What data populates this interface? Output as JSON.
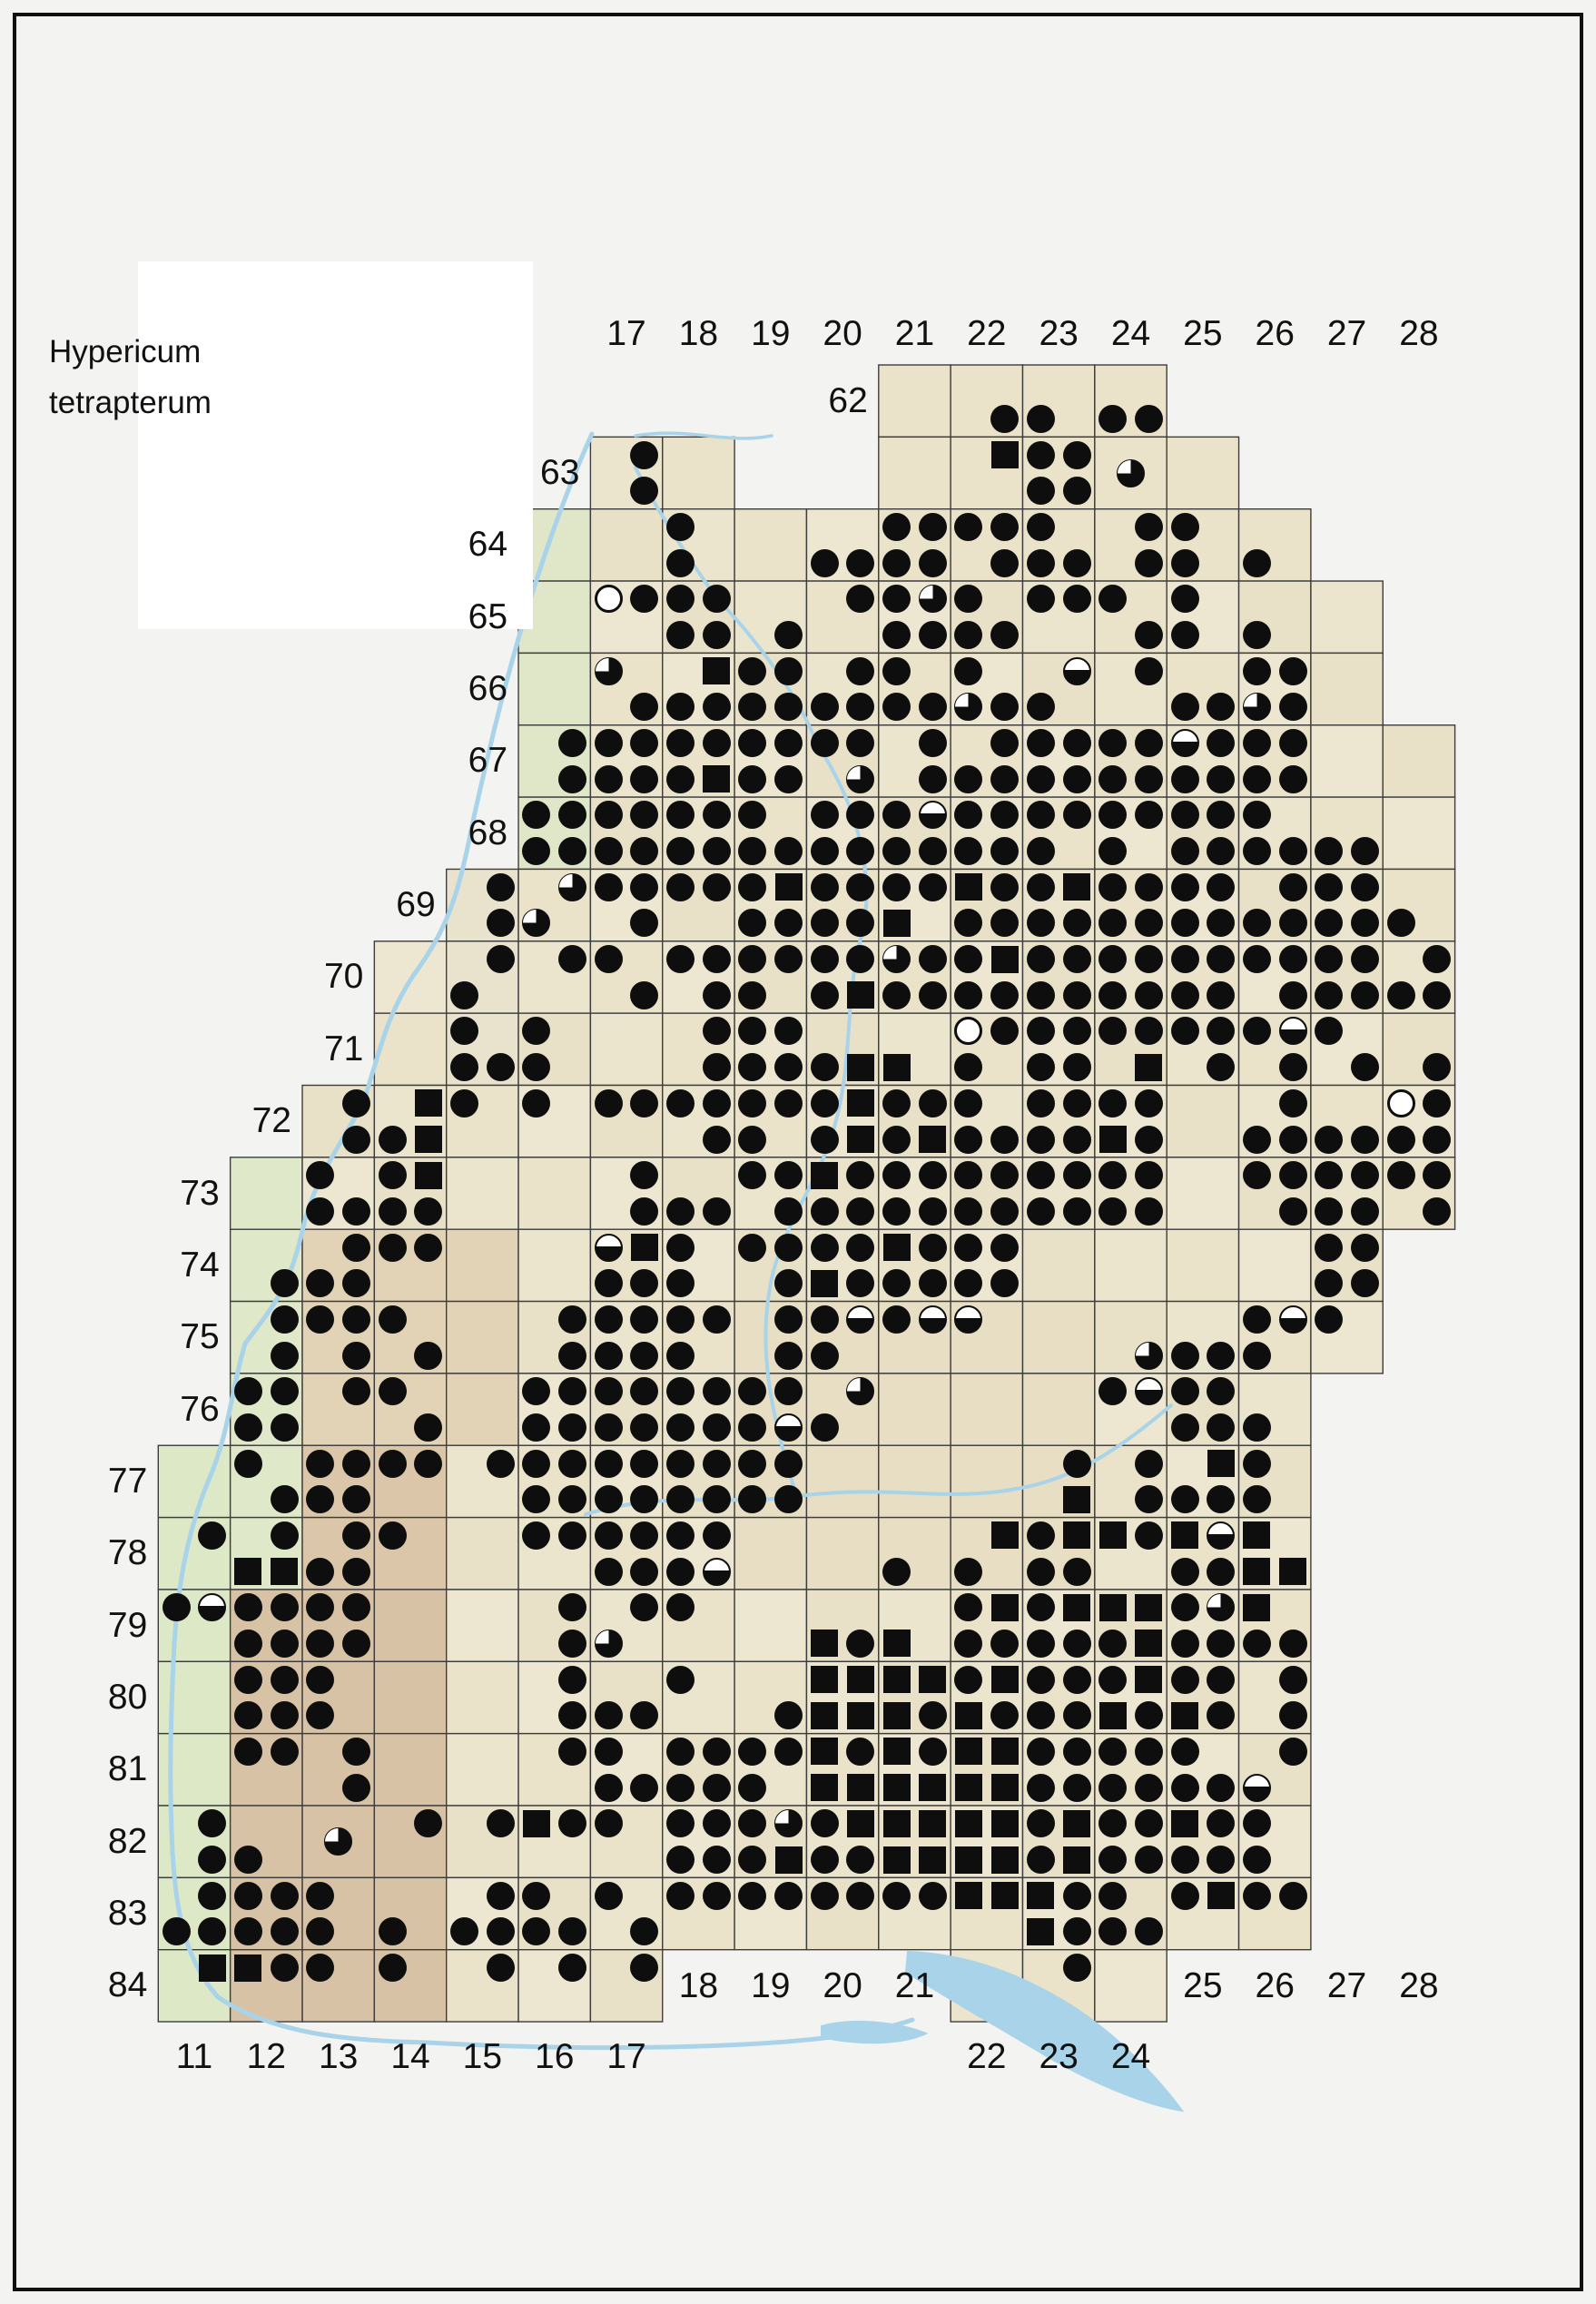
{
  "title": {
    "line1": "Hypericum",
    "line2": "tetrapterum"
  },
  "axis": {
    "top_labels": [
      {
        "col": 17,
        "text": "17"
      },
      {
        "col": 18,
        "text": "18"
      },
      {
        "col": 19,
        "text": "19"
      },
      {
        "col": 20,
        "text": "20"
      },
      {
        "col": 21,
        "text": "21"
      },
      {
        "col": 22,
        "text": "22"
      },
      {
        "col": 23,
        "text": "23"
      },
      {
        "col": 24,
        "text": "24"
      },
      {
        "col": 25,
        "text": "25"
      },
      {
        "col": 26,
        "text": "26"
      },
      {
        "col": 27,
        "text": "27"
      },
      {
        "col": 28,
        "text": "28"
      }
    ],
    "left_labels": [
      {
        "row": 62,
        "text": "62"
      },
      {
        "row": 63,
        "text": "63"
      },
      {
        "row": 64,
        "text": "64"
      },
      {
        "row": 65,
        "text": "65"
      },
      {
        "row": 66,
        "text": "66"
      },
      {
        "row": 67,
        "text": "67"
      },
      {
        "row": 68,
        "text": "68"
      },
      {
        "row": 69,
        "text": "69"
      },
      {
        "row": 70,
        "text": "70"
      },
      {
        "row": 71,
        "text": "71"
      },
      {
        "row": 72,
        "text": "72"
      },
      {
        "row": 73,
        "text": "73"
      },
      {
        "row": 74,
        "text": "74"
      },
      {
        "row": 75,
        "text": "75"
      },
      {
        "row": 76,
        "text": "76"
      },
      {
        "row": 77,
        "text": "77"
      },
      {
        "row": 78,
        "text": "78"
      },
      {
        "row": 79,
        "text": "79"
      },
      {
        "row": 80,
        "text": "80"
      },
      {
        "row": 81,
        "text": "81"
      },
      {
        "row": 82,
        "text": "82"
      },
      {
        "row": 83,
        "text": "83"
      },
      {
        "row": 84,
        "text": "84"
      }
    ],
    "bottom_labels_upper": [
      {
        "col": 18,
        "text": "18"
      },
      {
        "col": 19,
        "text": "19"
      },
      {
        "col": 20,
        "text": "20"
      },
      {
        "col": 21,
        "text": "21"
      },
      {
        "col": 25,
        "text": "25"
      },
      {
        "col": 26,
        "text": "26"
      },
      {
        "col": 27,
        "text": "27"
      },
      {
        "col": 28,
        "text": "28"
      }
    ],
    "bottom_labels_lower": [
      {
        "col": 11,
        "text": "11"
      },
      {
        "col": 12,
        "text": "12"
      },
      {
        "col": 13,
        "text": "13"
      },
      {
        "col": 14,
        "text": "14"
      },
      {
        "col": 15,
        "text": "15"
      },
      {
        "col": 16,
        "text": "16"
      },
      {
        "col": 17,
        "text": "17"
      },
      {
        "col": 22,
        "text": "22"
      },
      {
        "col": 23,
        "text": "23"
      },
      {
        "col": 24,
        "text": "24"
      }
    ]
  },
  "symbol_legend": {
    "f": "filled-circle-record",
    "s": "filled-square-record",
    "h": "circle-white-top-half",
    "q": "circle-white-top-left-quarter",
    "o": "open-circle"
  },
  "colors": {
    "symbol": "#0e0e0e",
    "grid_line": "#3d3d3d",
    "water": "#a9d3e9",
    "terrain_beige": "#ece4cd",
    "terrain_green": "#dde8c6",
    "terrain_brown": "#d8c2a5",
    "background": "#f3f3f1",
    "title_box": "#ffffff"
  },
  "grid_rows": [
    {
      "row": 62,
      "cols": [
        [
          21,
          24
        ]
      ]
    },
    {
      "row": 63,
      "cols": [
        [
          17,
          18
        ],
        [
          21,
          25
        ]
      ]
    },
    {
      "row": 64,
      "cols": [
        [
          16,
          26
        ]
      ]
    },
    {
      "row": 65,
      "cols": [
        [
          16,
          27
        ]
      ]
    },
    {
      "row": 66,
      "cols": [
        [
          16,
          27
        ]
      ]
    },
    {
      "row": 67,
      "cols": [
        [
          16,
          28
        ]
      ]
    },
    {
      "row": 68,
      "cols": [
        [
          16,
          28
        ]
      ]
    },
    {
      "row": 69,
      "cols": [
        [
          15,
          28
        ]
      ]
    },
    {
      "row": 70,
      "cols": [
        [
          14,
          28
        ]
      ]
    },
    {
      "row": 71,
      "cols": [
        [
          14,
          28
        ]
      ]
    },
    {
      "row": 72,
      "cols": [
        [
          13,
          28
        ]
      ]
    },
    {
      "row": 73,
      "cols": [
        [
          12,
          28
        ]
      ]
    },
    {
      "row": 74,
      "cols": [
        [
          12,
          27
        ]
      ]
    },
    {
      "row": 75,
      "cols": [
        [
          12,
          27
        ]
      ]
    },
    {
      "row": 76,
      "cols": [
        [
          12,
          26
        ]
      ]
    },
    {
      "row": 77,
      "cols": [
        [
          11,
          26
        ]
      ]
    },
    {
      "row": 78,
      "cols": [
        [
          11,
          26
        ]
      ]
    },
    {
      "row": 79,
      "cols": [
        [
          11,
          26
        ]
      ]
    },
    {
      "row": 80,
      "cols": [
        [
          11,
          26
        ]
      ]
    },
    {
      "row": 81,
      "cols": [
        [
          11,
          26
        ]
      ]
    },
    {
      "row": 82,
      "cols": [
        [
          11,
          26
        ]
      ]
    },
    {
      "row": 83,
      "cols": [
        [
          11,
          26
        ]
      ]
    },
    {
      "row": 84,
      "cols": [
        [
          11,
          17
        ],
        [
          22,
          24
        ]
      ]
    }
  ],
  "symbols": [
    "22,62,SE,f",
    "23,62,SW,f",
    "24,62,SW,f",
    "24,62,SE,f",
    "17,63,NE,f",
    "17,63,SE,f",
    "22,63,NE,s",
    "23,63,NW,f",
    "23,63,NE,f",
    "23,63,SW,f",
    "23,63,SE,f",
    "24,63,C,q",
    "18,64,NW,f",
    "18,64,SW,f",
    "20,64,SW,f",
    "20,64,SE,f",
    "21,64,NW,f",
    "21,64,NE,f",
    "21,64,SW,f",
    "21,64,SE,f",
    "22,64,NW,f",
    "22,64,NE,f",
    "22,64,SE,f",
    "23,64,NW,f",
    "23,64,SW,f",
    "23,64,SE,f",
    "24,64,NE,f",
    "24,64,SE,f",
    "25,64,NW,f",
    "25,64,SW,f",
    "26,64,SW,f",
    "17,65,NW,o",
    "17,65,NE,f",
    "18,65,NW,f",
    "18,65,NE,f",
    "18,65,SW,f",
    "18,65,SE,f",
    "19,65,SE,f",
    "20,65,NE,f",
    "21,65,NW,f",
    "21,65,NE,q",
    "21,65,SW,f",
    "21,65,SE,f",
    "22,65,NW,f",
    "22,65,SW,f",
    "22,65,SE,f",
    "23,65,NW,f",
    "23,65,NE,f",
    "24,65,NW,f",
    "24,65,SE,f",
    "25,65,NW,f",
    "25,65,SW,f",
    "26,65,SW,f",
    "17,66,NW,q",
    "17,66,SE,f",
    "18,66,NE,s",
    "18,66,SW,f",
    "18,66,SE,f",
    "19,66,NW,f",
    "19,66,NE,f",
    "19,66,SW,f",
    "19,66,SE,f",
    "20,66,NE,f",
    "20,66,SW,f",
    "20,66,SE,f",
    "21,66,NW,f",
    "21,66,SW,f",
    "21,66,SE,f",
    "22,66,NW,f",
    "22,66,SW,q",
    "22,66,SE,f",
    "23,66,NE,h",
    "23,66,SW,f",
    "24,66,NE,f",
    "25,66,SW,f",
    "25,66,SE,f",
    "26,66,NW,f",
    "26,66,NE,f",
    "26,66,SW,q",
    "26,66,SE,f",
    "16,67,NE,f",
    "16,67,SE,f",
    "17,67,NW,f",
    "17,67,NE,f",
    "17,67,SW,f",
    "17,67,SE,f",
    "18,67,NW,f",
    "18,67,NE,f",
    "18,67,SW,f",
    "18,67,SE,s",
    "19,67,NW,f",
    "19,67,NE,f",
    "19,67,SW,f",
    "19,67,SE,f",
    "20,67,NW,f",
    "20,67,NE,f",
    "20,67,SE,q",
    "21,67,NE,f",
    "21,67,SE,f",
    "22,67,NE,f",
    "22,67,SW,f",
    "22,67,SE,f",
    "23,67,NW,f",
    "23,67,NE,f",
    "23,67,SW,f",
    "23,67,SE,f",
    "24,67,NW,f",
    "24,67,NE,f",
    "24,67,SW,f",
    "24,67,SE,f",
    "25,67,NW,h",
    "25,67,NE,f",
    "25,67,SW,f",
    "25,67,SE,f",
    "26,67,NW,f",
    "26,67,NE,f",
    "26,67,SW,f",
    "26,67,SE,f",
    "16,68,NW,f",
    "16,68,NE,f",
    "16,68,SW,f",
    "16,68,SE,f",
    "17,68,NW,f",
    "17,68,NE,f",
    "17,68,SW,f",
    "17,68,SE,f",
    "18,68,NW,f",
    "18,68,NE,f",
    "18,68,SW,f",
    "18,68,SE,f",
    "19,68,NW,f",
    "19,68,SW,f",
    "19,68,SE,f",
    "20,68,NW,f",
    "20,68,NE,f",
    "20,68,SW,f",
    "20,68,SE,f",
    "21,68,NW,f",
    "21,68,NE,h",
    "21,68,SW,f",
    "21,68,SE,f",
    "22,68,NW,f",
    "22,68,NE,f",
    "22,68,SW,f",
    "22,68,SE,f",
    "23,68,NW,f",
    "23,68,NE,f",
    "23,68,SW,f",
    "24,68,NW,f",
    "24,68,NE,f",
    "24,68,SW,f",
    "25,68,NW,f",
    "25,68,NE,f",
    "25,68,SW,f",
    "25,68,SE,f",
    "26,68,NW,f",
    "26,68,SW,f",
    "26,68,SE,f",
    "27,68,SW,f",
    "27,68,SE,f",
    "15,69,NE,f",
    "15,69,SE,f",
    "16,69,NE,q",
    "16,69,SW,q",
    "17,69,NW,f",
    "17,69,NE,f",
    "17,69,SE,f",
    "18,69,NW,f",
    "18,69,NE,f",
    "19,69,NW,f",
    "19,69,NE,s",
    "19,69,SW,f",
    "19,69,SE,f",
    "20,69,NW,f",
    "20,69,NE,f",
    "20,69,SW,f",
    "20,69,SE,f",
    "21,69,NW,f",
    "21,69,NE,f",
    "21,69,SW,s",
    "22,69,NW,s",
    "22,69,NE,f",
    "22,69,SW,f",
    "22,69,SE,f",
    "23,69,NW,f",
    "23,69,NE,s",
    "23,69,SW,f",
    "23,69,SE,f",
    "24,69,NW,f",
    "24,69,NE,f",
    "24,69,SW,f",
    "24,69,SE,f",
    "25,69,NW,f",
    "25,69,NE,f",
    "25,69,SW,f",
    "25,69,SE,f",
    "26,69,NE,f",
    "26,69,SW,f",
    "26,69,SE,f",
    "27,69,NW,f",
    "27,69,NE,f",
    "27,69,SW,f",
    "27,69,SE,f",
    "28,69,SW,f",
    "15,70,NE,f",
    "15,70,SW,f",
    "16,70,NE,f",
    "17,70,NW,f",
    "17,70,SE,f",
    "18,70,NW,f",
    "18,70,NE,f",
    "18,70,SE,f",
    "19,70,NW,f",
    "19,70,NE,f",
    "19,70,SW,f",
    "20,70,NW,f",
    "20,70,NE,f",
    "20,70,SW,f",
    "20,70,SE,s",
    "21,70,NW,q",
    "21,70,NE,f",
    "21,70,SW,f",
    "21,70,SE,f",
    "22,70,NW,f",
    "22,70,NE,s",
    "22,70,SW,f",
    "22,70,SE,f",
    "23,70,NW,f",
    "23,70,NE,f",
    "23,70,SW,f",
    "23,70,SE,f",
    "24,70,NW,f",
    "24,70,NE,f",
    "24,70,SW,f",
    "24,70,SE,f",
    "25,70,NW,f",
    "25,70,NE,f",
    "25,70,SW,f",
    "25,70,SE,f",
    "26,70,NW,f",
    "26,70,NE,f",
    "26,70,SE,f",
    "27,70,NW,f",
    "27,70,NE,f",
    "27,70,SW,f",
    "27,70,SE,f",
    "28,70,NE,f",
    "28,70,SW,f",
    "28,70,SE,f",
    "15,71,NW,f",
    "15,71,SW,f",
    "15,71,SE,f",
    "16,71,NW,f",
    "16,71,SW,f",
    "18,71,NE,f",
    "18,71,SE,f",
    "19,71,NW,f",
    "19,71,NE,f",
    "19,71,SW,f",
    "19,71,SE,f",
    "20,71,SW,f",
    "20,71,SE,s",
    "21,71,SW,s",
    "22,71,NW,o",
    "22,71,NE,f",
    "22,71,SW,f",
    "23,71,NW,f",
    "23,71,NE,f",
    "23,71,SW,f",
    "23,71,SE,f",
    "24,71,NW,f",
    "24,71,NE,f",
    "24,71,SE,s",
    "25,71,NW,f",
    "25,71,NE,f",
    "25,71,SE,f",
    "26,71,NW,f",
    "26,71,NE,h",
    "26,71,SE,f",
    "27,71,NW,f",
    "27,71,SE,f",
    "28,71,SE,f",
    "13,72,NE,f",
    "13,72,SE,f",
    "14,72,NE,s",
    "14,72,SW,f",
    "14,72,SE,s",
    "15,72,NW,f",
    "16,72,NW,f",
    "17,72,NW,f",
    "17,72,NE,f",
    "18,72,NW,f",
    "18,72,NE,f",
    "18,72,SE,f",
    "19,72,NW,f",
    "19,72,NE,f",
    "19,72,SW,f",
    "20,72,NW,f",
    "20,72,NE,s",
    "20,72,SW,f",
    "20,72,SE,s",
    "21,72,NW,f",
    "21,72,NE,f",
    "21,72,SW,f",
    "21,72,SE,s",
    "22,72,NW,f",
    "22,72,SW,f",
    "22,72,SE,f",
    "23,72,NW,f",
    "23,72,NE,f",
    "23,72,SW,f",
    "23,72,SE,f",
    "24,72,NW,f",
    "24,72,NE,f",
    "24,72,SW,s",
    "24,72,SE,f",
    "26,72,NE,f",
    "26,72,SW,f",
    "26,72,SE,f",
    "27,72,SW,f",
    "27,72,SE,f",
    "28,72,NW,o",
    "28,72,NE,f",
    "28,72,SW,f",
    "28,72,SE,f",
    "13,73,NW,f",
    "13,73,SW,f",
    "13,73,SE,f",
    "14,73,NW,f",
    "14,73,NE,s",
    "14,73,SW,f",
    "14,73,SE,f",
    "17,73,NE,f",
    "17,73,SE,f",
    "18,73,SW,f",
    "18,73,SE,f",
    "19,73,NW,f",
    "19,73,NE,f",
    "19,73,SE,f",
    "20,73,NW,s",
    "20,73,NE,f",
    "20,73,SW,f",
    "20,73,SE,f",
    "21,73,NW,f",
    "21,73,NE,f",
    "21,73,SW,f",
    "21,73,SE,f",
    "22,73,NW,f",
    "22,73,NE,f",
    "22,73,SW,f",
    "22,73,SE,f",
    "23,73,NW,f",
    "23,73,NE,f",
    "23,73,SW,f",
    "23,73,SE,f",
    "24,73,NW,f",
    "24,73,NE,f",
    "24,73,SW,f",
    "24,73,SE,f",
    "26,73,NW,f",
    "26,73,NE,f",
    "26,73,SE,f",
    "27,73,NW,f",
    "27,73,NE,f",
    "27,73,SW,f",
    "27,73,SE,f",
    "28,73,NW,f",
    "28,73,NE,f",
    "28,73,SE,f",
    "12,74,SE,f",
    "13,74,NE,f",
    "13,74,SW,f",
    "13,74,SE,f",
    "14,74,NW,f",
    "14,74,NE,f",
    "17,74,NW,h",
    "17,74,NE,s",
    "17,74,SW,f",
    "17,74,SE,f",
    "18,74,NW,f",
    "18,74,SW,f",
    "19,74,NW,f",
    "19,74,NE,f",
    "19,74,SE,f",
    "20,74,NW,f",
    "20,74,NE,f",
    "20,74,SW,s",
    "20,74,SE,f",
    "21,74,NW,s",
    "21,74,NE,f",
    "21,74,SW,f",
    "21,74,SE,f",
    "22,74,NW,f",
    "22,74,NE,f",
    "22,74,SW,f",
    "22,74,SE,f",
    "27,74,NW,f",
    "27,74,NE,f",
    "27,74,SW,f",
    "27,74,SE,f",
    "12,75,NE,f",
    "12,75,SE,f",
    "13,75,NW,f",
    "13,75,NE,f",
    "13,75,SE,f",
    "14,75,NW,f",
    "14,75,SE,f",
    "16,75,NE,f",
    "16,75,SE,f",
    "17,75,NW,f",
    "17,75,NE,f",
    "17,75,SW,f",
    "17,75,SE,f",
    "18,75,NW,f",
    "18,75,NE,f",
    "18,75,SW,f",
    "19,75,NE,f",
    "19,75,SE,f",
    "20,75,NW,f",
    "20,75,NE,h",
    "20,75,SW,f",
    "21,75,NW,f",
    "21,75,NE,h",
    "22,75,NW,h",
    "24,75,SE,q",
    "25,75,SW,f",
    "25,75,SE,f",
    "26,75,NW,f",
    "26,75,NE,h",
    "26,75,SW,f",
    "27,75,NW,f",
    "12,76,NW,f",
    "12,76,NE,f",
    "12,76,SW,f",
    "12,76,SE,f",
    "13,76,NE,f",
    "14,76,NW,f",
    "14,76,SE,f",
    "16,76,NW,f",
    "16,76,NE,f",
    "16,76,SW,f",
    "16,76,SE,f",
    "17,76,NW,f",
    "17,76,NE,f",
    "17,76,SW,f",
    "17,76,SE,f",
    "18,76,NW,f",
    "18,76,NE,f",
    "18,76,SW,f",
    "18,76,SE,f",
    "19,76,NW,f",
    "19,76,NE,f",
    "19,76,SW,f",
    "19,76,SE,h",
    "20,76,NE,q",
    "20,76,SW,f",
    "24,76,NW,f",
    "24,76,NE,h",
    "25,76,NW,f",
    "25,76,NE,f",
    "25,76,SW,f",
    "25,76,SE,f",
    "26,76,SW,f",
    "12,77,NW,f",
    "12,77,SE,f",
    "13,77,NW,f",
    "13,77,NE,f",
    "13,77,SW,f",
    "13,77,SE,f",
    "14,77,NW,f",
    "14,77,NE,f",
    "15,77,NE,f",
    "16,77,NW,f",
    "16,77,NE,f",
    "16,77,SW,f",
    "16,77,SE,f",
    "17,77,NW,f",
    "17,77,NE,f",
    "17,77,SW,f",
    "17,77,SE,f",
    "18,77,NW,f",
    "18,77,NE,f",
    "18,77,SW,f",
    "18,77,SE,f",
    "19,77,NW,f",
    "19,77,NE,f",
    "19,77,SW,f",
    "19,77,SE,f",
    "23,77,NE,f",
    "23,77,SE,s",
    "24,77,NE,f",
    "24,77,SE,f",
    "25,77,NE,s",
    "25,77,SW,f",
    "25,77,SE,f",
    "26,77,NW,f",
    "26,77,SW,f",
    "11,78,NE,f",
    "12,78,NE,f",
    "12,78,SW,s",
    "12,78,SE,s",
    "13,78,NE,f",
    "13,78,SW,f",
    "13,78,SE,f",
    "14,78,NW,f",
    "16,78,NW,f",
    "16,78,NE,f",
    "17,78,NW,f",
    "17,78,NE,f",
    "17,78,SW,f",
    "17,78,SE,f",
    "18,78,NW,f",
    "18,78,NE,f",
    "18,78,SW,f",
    "18,78,SE,h",
    "21,78,SW,f",
    "22,78,NE,s",
    "22,78,SW,f",
    "23,78,NW,f",
    "23,78,NE,s",
    "23,78,SW,f",
    "23,78,SE,f",
    "24,78,NW,s",
    "24,78,NE,f",
    "25,78,NW,s",
    "25,78,NE,h",
    "25,78,SW,f",
    "25,78,SE,f",
    "26,78,NW,s",
    "26,78,SW,s",
    "26,78,SE,s",
    "11,79,NW,f",
    "11,79,NE,h",
    "12,79,NW,f",
    "12,79,NE,f",
    "12,79,SW,f",
    "12,79,SE,f",
    "13,79,NW,f",
    "13,79,NE,f",
    "13,79,SW,f",
    "13,79,SE,f",
    "16,79,NE,f",
    "16,79,SE,f",
    "17,79,NE,f",
    "17,79,SW,q",
    "18,79,NW,f",
    "20,79,SW,s",
    "20,79,SE,f",
    "21,79,SW,s",
    "22,79,NW,f",
    "22,79,NE,s",
    "22,79,SW,f",
    "22,79,SE,f",
    "23,79,NW,f",
    "23,79,NE,s",
    "23,79,SW,f",
    "23,79,SE,f",
    "24,79,NW,s",
    "24,79,NE,s",
    "24,79,SW,f",
    "24,79,SE,s",
    "25,79,NW,f",
    "25,79,NE,q",
    "25,79,SW,f",
    "25,79,SE,f",
    "26,79,NW,s",
    "26,79,SW,f",
    "26,79,SE,f",
    "12,80,NW,f",
    "12,80,NE,f",
    "12,80,SW,f",
    "12,80,SE,f",
    "13,80,NW,f",
    "13,80,SW,f",
    "16,80,NE,f",
    "16,80,SE,f",
    "17,80,SW,f",
    "17,80,SE,f",
    "18,80,NW,f",
    "19,80,SE,f",
    "20,80,NW,s",
    "20,80,NE,s",
    "20,80,SW,s",
    "20,80,SE,s",
    "21,80,NW,s",
    "21,80,NE,s",
    "21,80,SW,s",
    "21,80,SE,f",
    "22,80,NW,f",
    "22,80,NE,s",
    "22,80,SW,s",
    "22,80,SE,f",
    "23,80,NW,f",
    "23,80,NE,f",
    "23,80,SW,f",
    "23,80,SE,f",
    "24,80,NW,f",
    "24,80,NE,s",
    "24,80,SW,s",
    "24,80,SE,f",
    "25,80,NW,f",
    "25,80,NE,f",
    "25,80,SW,s",
    "25,80,SE,f",
    "26,80,NE,f",
    "26,80,SE,f",
    "12,81,NW,f",
    "12,81,NE,f",
    "13,81,NE,f",
    "13,81,SE,f",
    "16,81,NE,f",
    "17,81,NW,f",
    "17,81,SW,f",
    "17,81,SE,f",
    "18,81,NW,f",
    "18,81,NE,f",
    "18,81,SW,f",
    "18,81,SE,f",
    "19,81,NW,f",
    "19,81,NE,f",
    "19,81,SW,f",
    "20,81,NW,s",
    "20,81,NE,f",
    "20,81,SW,s",
    "20,81,SE,s",
    "21,81,NW,s",
    "21,81,NE,f",
    "21,81,SW,s",
    "21,81,SE,s",
    "22,81,NW,s",
    "22,81,NE,s",
    "22,81,SW,s",
    "22,81,SE,s",
    "23,81,NW,f",
    "23,81,NE,f",
    "23,81,SW,f",
    "23,81,SE,f",
    "24,81,NW,f",
    "24,81,NE,f",
    "24,81,SW,f",
    "24,81,SE,f",
    "25,81,NW,f",
    "25,81,SW,f",
    "25,81,SE,f",
    "26,81,NE,f",
    "26,81,SW,h",
    "11,82,NE,f",
    "11,82,SE,f",
    "12,82,SW,f",
    "13,82,C,q",
    "14,82,NE,f",
    "15,82,NE,f",
    "16,82,NW,s",
    "16,82,NE,f",
    "17,82,NW,f",
    "18,82,NW,f",
    "18,82,NE,f",
    "18,82,SW,f",
    "18,82,SE,f",
    "19,82,NW,f",
    "19,82,NE,q",
    "19,82,SW,f",
    "19,82,SE,s",
    "20,82,NW,f",
    "20,82,NE,s",
    "20,82,SW,f",
    "20,82,SE,f",
    "21,82,NW,s",
    "21,82,NE,s",
    "21,82,SW,s",
    "21,82,SE,s",
    "22,82,NW,s",
    "22,82,NE,s",
    "22,82,SW,s",
    "22,82,SE,s",
    "23,82,NW,f",
    "23,82,NE,s",
    "23,82,SW,f",
    "23,82,SE,s",
    "24,82,NW,f",
    "24,82,NE,f",
    "24,82,SW,f",
    "24,82,SE,f",
    "25,82,NW,s",
    "25,82,NE,f",
    "25,82,SW,f",
    "25,82,SE,f",
    "26,82,NW,f",
    "26,82,SW,f",
    "11,83,NE,f",
    "11,83,SW,f",
    "11,83,SE,f",
    "12,83,NW,f",
    "12,83,NE,f",
    "12,83,SW,f",
    "12,83,SE,f",
    "13,83,NW,f",
    "13,83,SW,f",
    "14,83,SW,f",
    "15,83,NE,f",
    "15,83,SW,f",
    "15,83,SE,f",
    "16,83,NW,f",
    "16,83,SW,f",
    "16,83,SE,f",
    "17,83,NW,f",
    "17,83,SE,f",
    "18,83,NW,f",
    "18,83,NE,f",
    "19,83,NW,f",
    "19,83,NE,f",
    "20,83,NW,f",
    "20,83,NE,f",
    "21,83,NW,f",
    "21,83,NE,f",
    "22,83,NW,s",
    "22,83,NE,s",
    "23,83,NW,s",
    "23,83,NE,f",
    "23,83,SW,s",
    "23,83,SE,f",
    "24,83,NW,f",
    "24,83,SW,f",
    "24,83,SE,f",
    "25,83,NW,f",
    "25,83,NE,s",
    "26,83,NW,f",
    "26,83,NE,f",
    "11,84,NE,s",
    "12,84,NW,s",
    "12,84,NE,f",
    "13,84,NW,f",
    "14,84,NW,f",
    "15,84,NE,f",
    "16,84,NE,f",
    "17,84,NE,f",
    "23,84,NE,f"
  ]
}
